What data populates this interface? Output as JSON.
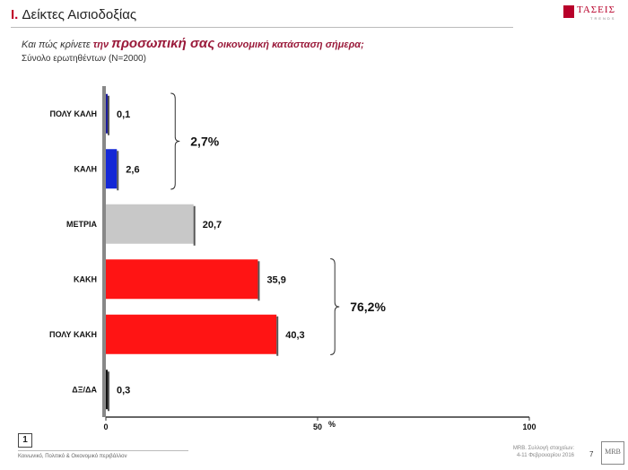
{
  "header": {
    "title_roman": "I.",
    "title_text": " Δείκτες Αισιοδοξίας",
    "subtitle_pre": "Και πώς κρίνετε ",
    "subtitle_mid1": "την ",
    "subtitle_big": "προσωπική σας",
    "subtitle_mid2": " οικονομική κατάσταση σήμερα;",
    "sample": "Σύνολο ερωτηθέντων (N=2000)",
    "logo_name": "ΤΑΣΕΙΣ",
    "logo_tag": "TRENDS"
  },
  "chart_data": {
    "type": "bar",
    "orientation": "horizontal",
    "categories": [
      "ΠΟΛΥ ΚΑΛΗ",
      "ΚΑΛΗ",
      "ΜΕΤΡΙΑ",
      "ΚΑΚΗ",
      "ΠΟΛΥ ΚΑΚΗ",
      "ΔΞ/ΔΑ"
    ],
    "values": [
      0.1,
      2.6,
      20.7,
      35.9,
      40.3,
      0.3
    ],
    "value_labels": [
      "0,1",
      "2,6",
      "20,7",
      "35,9",
      "40,3",
      "0,3"
    ],
    "colors": [
      "#1a1a9c",
      "#1428d6",
      "#c8c8c8",
      "#ff1414",
      "#ff1414",
      "#111111"
    ],
    "xlim": [
      0,
      100
    ],
    "x_ticks": [
      "0",
      "50",
      "100"
    ],
    "x_unit": "%",
    "groups": [
      {
        "label": "2,7%",
        "from": 0,
        "to": 1
      },
      {
        "label": "76,2%",
        "from": 3,
        "to": 4
      }
    ],
    "grid": false,
    "legend": "none"
  },
  "footer": {
    "page_box": "1",
    "left_text": "Κοινωνικό, Πολιτικό & Οικονομικό περιβάλλον",
    "right_line1": "MRB. Συλλογή στοιχείων:",
    "right_line2": "4-11 Φεβρουαρίου 2016",
    "page_number": "7",
    "logo_bottom": "MRB"
  }
}
